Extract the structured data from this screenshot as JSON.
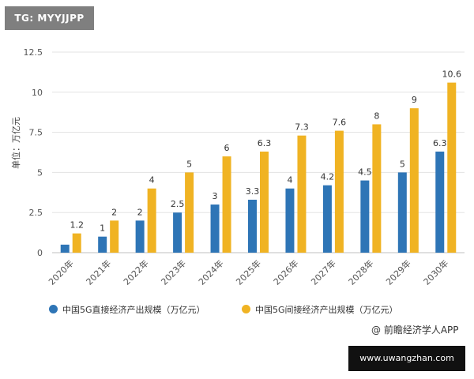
{
  "badges": {
    "tg": "TG: MYYJJPP",
    "site": "www.uwangzhan.com"
  },
  "credit": "@ 前瞻经济学人APP",
  "colors": {
    "direct": "#2e75b6",
    "indirect": "#f0b323",
    "grid": "#e3e3e3",
    "axis_text": "#555555"
  },
  "chart_data": {
    "type": "bar",
    "title": "",
    "ylabel": "单位：万亿元",
    "xlabel": "",
    "ylim": [
      0,
      12.5
    ],
    "yticks": [
      0,
      2.5,
      5,
      7.5,
      10,
      12.5
    ],
    "ytick_labels": [
      "0",
      "2.5",
      "5",
      "7.5",
      "10",
      "12.5"
    ],
    "grid": true,
    "legend_placement": "bottom",
    "categories": [
      "2020年",
      "2021年",
      "2022年",
      "2023年",
      "2024年",
      "2025年",
      "2026年",
      "2027年",
      "2028年",
      "2029年",
      "2030年"
    ],
    "series": [
      {
        "name": "中国5G直接经济产出规模（万亿元）",
        "values": [
          0.5,
          1,
          2,
          2.5,
          3,
          3.3,
          4,
          4.2,
          4.5,
          5,
          6.3
        ],
        "labels": [
          "",
          "1",
          "2",
          "2.5",
          "3",
          "3.3",
          "4",
          "4.2",
          "4.5",
          "5",
          "6.3"
        ]
      },
      {
        "name": "中国5G间接经济产出规模（万亿元）",
        "values": [
          1.2,
          2,
          4,
          5,
          6,
          6.3,
          7.3,
          7.6,
          8,
          9,
          10.6
        ],
        "labels": [
          "1.2",
          "2",
          "4",
          "5",
          "6",
          "6.3",
          "7.3",
          "7.6",
          "8",
          "9",
          "10.6"
        ]
      }
    ]
  }
}
